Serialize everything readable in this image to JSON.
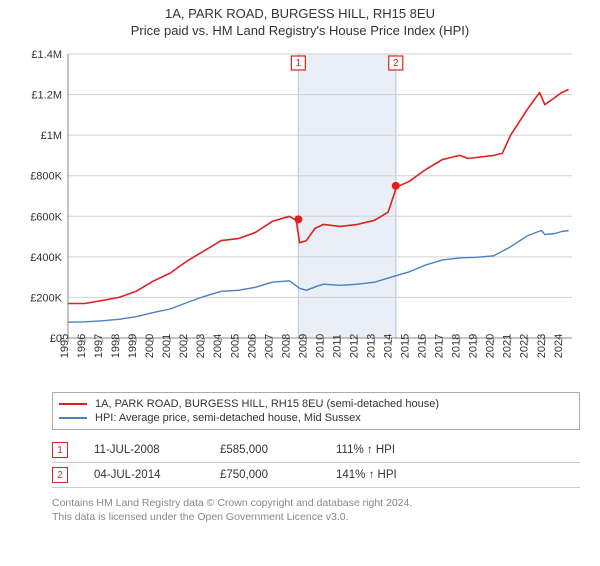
{
  "title": "1A, PARK ROAD, BURGESS HILL, RH15 8EU",
  "subtitle": "Price paid vs. HM Land Registry's House Price Index (HPI)",
  "chart": {
    "type": "line",
    "background": "#ffffff",
    "grid_color": "#d0d0d0",
    "axis_color": "#888888",
    "x": {
      "min": 1995,
      "max": 2024.6,
      "ticks": [
        1995,
        1996,
        1997,
        1998,
        1999,
        2000,
        2001,
        2002,
        2003,
        2004,
        2005,
        2006,
        2007,
        2008,
        2009,
        2010,
        2011,
        2012,
        2013,
        2014,
        2015,
        2016,
        2017,
        2018,
        2019,
        2020,
        2021,
        2022,
        2023,
        2024
      ]
    },
    "y": {
      "min": 0,
      "max": 1400000,
      "ticks": [
        0,
        200000,
        400000,
        600000,
        800000,
        1000000,
        1200000,
        1400000
      ],
      "labels": [
        "£0",
        "£200K",
        "£400K",
        "£600K",
        "£800K",
        "£1M",
        "£1.2M",
        "£1.4M"
      ]
    },
    "series": [
      {
        "name": "property",
        "color": "#e02020",
        "width": 1.6,
        "data": [
          [
            1995,
            170000
          ],
          [
            1996,
            170000
          ],
          [
            1997,
            185000
          ],
          [
            1998,
            200000
          ],
          [
            1999,
            230000
          ],
          [
            2000,
            280000
          ],
          [
            2001,
            320000
          ],
          [
            2002,
            380000
          ],
          [
            2003,
            430000
          ],
          [
            2004,
            480000
          ],
          [
            2005,
            490000
          ],
          [
            2006,
            520000
          ],
          [
            2007,
            575000
          ],
          [
            2008,
            600000
          ],
          [
            2008.4,
            580000
          ],
          [
            2008.6,
            470000
          ],
          [
            2009,
            480000
          ],
          [
            2009.5,
            540000
          ],
          [
            2010,
            560000
          ],
          [
            2010.5,
            555000
          ],
          [
            2011,
            550000
          ],
          [
            2012,
            560000
          ],
          [
            2013,
            580000
          ],
          [
            2013.8,
            620000
          ],
          [
            2014.3,
            745000
          ],
          [
            2015,
            770000
          ],
          [
            2016,
            830000
          ],
          [
            2017,
            880000
          ],
          [
            2018,
            900000
          ],
          [
            2018.5,
            885000
          ],
          [
            2019,
            890000
          ],
          [
            2020,
            900000
          ],
          [
            2020.5,
            910000
          ],
          [
            2021,
            1000000
          ],
          [
            2022,
            1130000
          ],
          [
            2022.7,
            1210000
          ],
          [
            2023,
            1150000
          ],
          [
            2023.5,
            1180000
          ],
          [
            2024,
            1210000
          ],
          [
            2024.4,
            1225000
          ]
        ]
      },
      {
        "name": "hpi",
        "color": "#4a7fc1",
        "width": 1.4,
        "data": [
          [
            1995,
            78000
          ],
          [
            1996,
            80000
          ],
          [
            1997,
            85000
          ],
          [
            1998,
            92000
          ],
          [
            1999,
            105000
          ],
          [
            2000,
            125000
          ],
          [
            2001,
            143000
          ],
          [
            2002,
            175000
          ],
          [
            2003,
            205000
          ],
          [
            2004,
            230000
          ],
          [
            2005,
            235000
          ],
          [
            2006,
            250000
          ],
          [
            2007,
            275000
          ],
          [
            2008,
            282000
          ],
          [
            2008.6,
            245000
          ],
          [
            2009,
            235000
          ],
          [
            2009.6,
            255000
          ],
          [
            2010,
            265000
          ],
          [
            2011,
            260000
          ],
          [
            2012,
            265000
          ],
          [
            2013,
            275000
          ],
          [
            2014,
            300000
          ],
          [
            2015,
            325000
          ],
          [
            2016,
            360000
          ],
          [
            2017,
            385000
          ],
          [
            2018,
            395000
          ],
          [
            2019,
            398000
          ],
          [
            2020,
            405000
          ],
          [
            2021,
            450000
          ],
          [
            2022,
            505000
          ],
          [
            2022.8,
            530000
          ],
          [
            2023,
            510000
          ],
          [
            2023.6,
            515000
          ],
          [
            2024,
            525000
          ],
          [
            2024.4,
            530000
          ]
        ]
      }
    ],
    "sale_band": {
      "from": 2008.5,
      "to": 2014.3,
      "fill": "#e9eef7"
    },
    "markers": [
      {
        "n": "1",
        "x": 2008.53,
        "y": 585000
      },
      {
        "n": "2",
        "x": 2014.25,
        "y": 750000
      }
    ]
  },
  "legend": {
    "items": [
      {
        "color": "#e02020",
        "label": "1A, PARK ROAD, BURGESS HILL, RH15 8EU (semi-detached house)"
      },
      {
        "color": "#4a7fc1",
        "label": "HPI: Average price, semi-detached house, Mid Sussex"
      }
    ]
  },
  "table": {
    "rows": [
      {
        "n": "1",
        "date": "11-JUL-2008",
        "price": "£585,000",
        "hpi": "111% ↑ HPI"
      },
      {
        "n": "2",
        "date": "04-JUL-2014",
        "price": "£750,000",
        "hpi": "141% ↑ HPI"
      }
    ]
  },
  "footer": {
    "line1": "Contains HM Land Registry data © Crown copyright and database right 2024.",
    "line2": "This data is licensed under the Open Government Licence v3.0."
  }
}
